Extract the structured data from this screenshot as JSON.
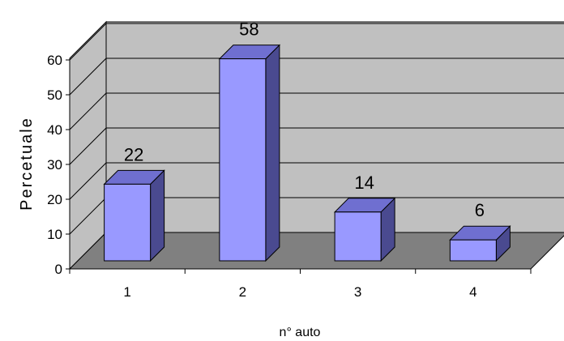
{
  "chart_data": {
    "type": "bar",
    "categories": [
      "1",
      "2",
      "3",
      "4"
    ],
    "values": [
      22,
      58,
      14,
      6
    ],
    "data_labels": [
      "22",
      "58",
      "14",
      "6"
    ],
    "title": "",
    "xlabel": "n° auto",
    "ylabel": "Percetuale",
    "ylim": [
      0,
      60
    ],
    "yticks": [
      "0",
      "10",
      "20",
      "30",
      "40",
      "50",
      "60"
    ],
    "grid": true,
    "legend": "none",
    "colors": {
      "bar_front": "#9999ff",
      "bar_top": "#6f6fd0",
      "bar_side": "#4a4a90",
      "back_wall": "#c0c0c0",
      "side_wall": "#c0c0c0",
      "floor": "#808080",
      "outline": "#000000"
    }
  }
}
